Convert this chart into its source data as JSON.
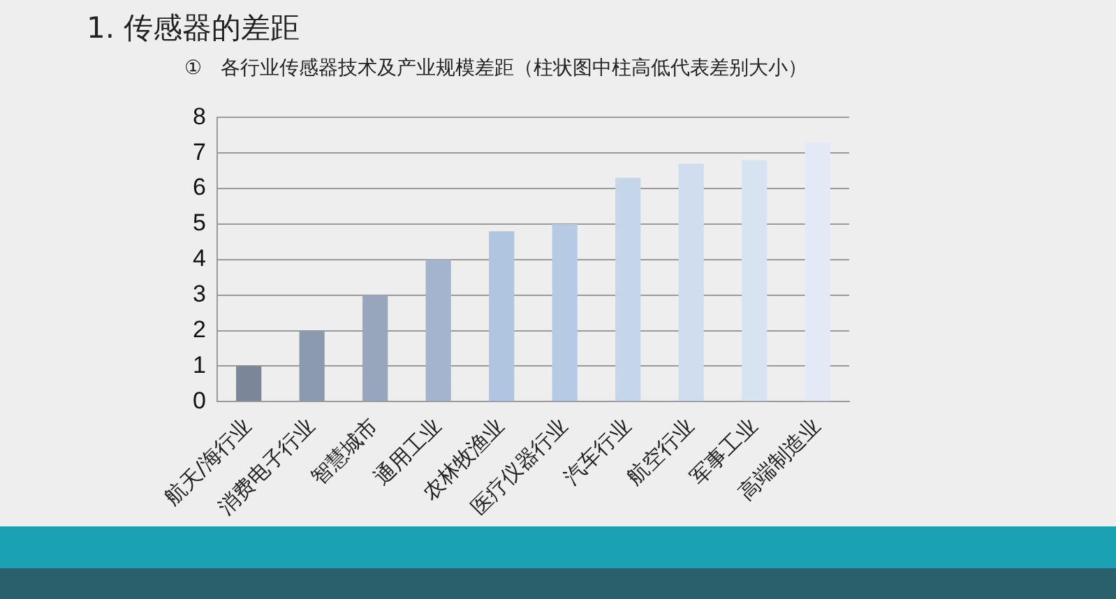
{
  "chart_data": {
    "type": "bar",
    "title": "1. 传感器的差距",
    "subtitle": "①   各行业传感器技术及产业规模差距（柱状图中柱高低代表差别大小）",
    "categories": [
      "航天/海行业",
      "消费电子行业",
      "智慧城市",
      "通用工业",
      "农林牧渔业",
      "医疗仪器行业",
      "汽车行业",
      "航空行业",
      "军事工业",
      "高端制造业"
    ],
    "values": [
      1,
      2,
      3,
      4,
      4.8,
      5,
      6.3,
      6.7,
      6.8,
      7.3
    ],
    "colors": [
      "#7b8799",
      "#8c9ab0",
      "#97a6bd",
      "#a3b4cc",
      "#b0c5df",
      "#b6cae4",
      "#c6d6ea",
      "#d0ddee",
      "#d8e3f1",
      "#e3eaf5"
    ],
    "ylim": [
      0,
      8
    ],
    "yticks": [
      0,
      1,
      2,
      3,
      4,
      5,
      6,
      7,
      8
    ],
    "grid": "y",
    "legend": false
  }
}
